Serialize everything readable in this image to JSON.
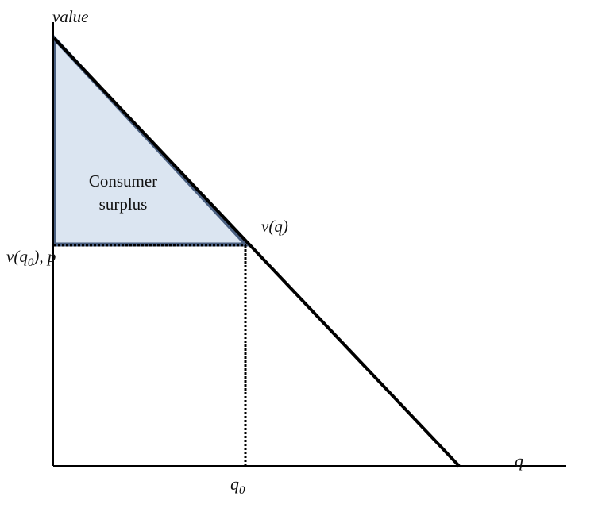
{
  "labels": {
    "y_axis": "value",
    "x_axis": "q",
    "surplus_line1": "Consumer",
    "surplus_line2": "surplus",
    "curve": "v(q)",
    "price_main": "v(q",
    "price_sub": "0",
    "price_tail": "), p",
    "q0_main": "q",
    "q0_sub": "0"
  },
  "colors": {
    "axis": "#000000",
    "curve": "#000000",
    "surplus_fill": "#dbe5f1",
    "surplus_stroke": "#4a5f80",
    "guide": "#000000"
  }
}
